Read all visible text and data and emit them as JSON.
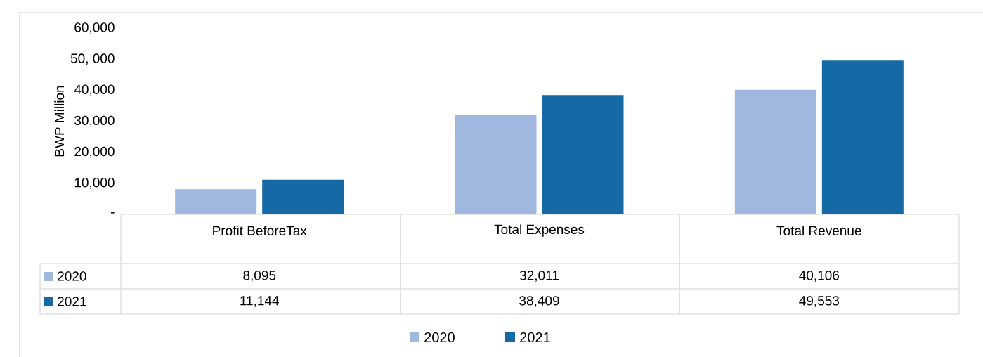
{
  "chart_data": {
    "type": "bar",
    "categories": [
      "Profit BeforeTax",
      "Total  Expenses",
      "Total Revenue"
    ],
    "series": [
      {
        "name": "2020",
        "color": "#a0b8df",
        "values": [
          8095,
          32011,
          40106
        ],
        "value_labels": [
          "8,095",
          "32,011",
          "40,106"
        ]
      },
      {
        "name": "2021",
        "color": "#156aa6",
        "values": [
          11144,
          38409,
          49553
        ],
        "value_labels": [
          "11,144",
          "38,409",
          "49,553"
        ]
      }
    ],
    "ylabel": "BWP Million",
    "ylim": [
      0,
      60000
    ],
    "yticks": [
      {
        "value": 0,
        "label": "-"
      },
      {
        "value": 10000,
        "label": "10,000"
      },
      {
        "value": 20000,
        "label": "20,000"
      },
      {
        "value": 30000,
        "label": "30,000"
      },
      {
        "value": 40000,
        "label": "40,000"
      },
      {
        "value": 50000,
        "label": "50, 000"
      },
      {
        "value": 60000,
        "label": "60,000"
      }
    ],
    "legend": "bottom"
  }
}
